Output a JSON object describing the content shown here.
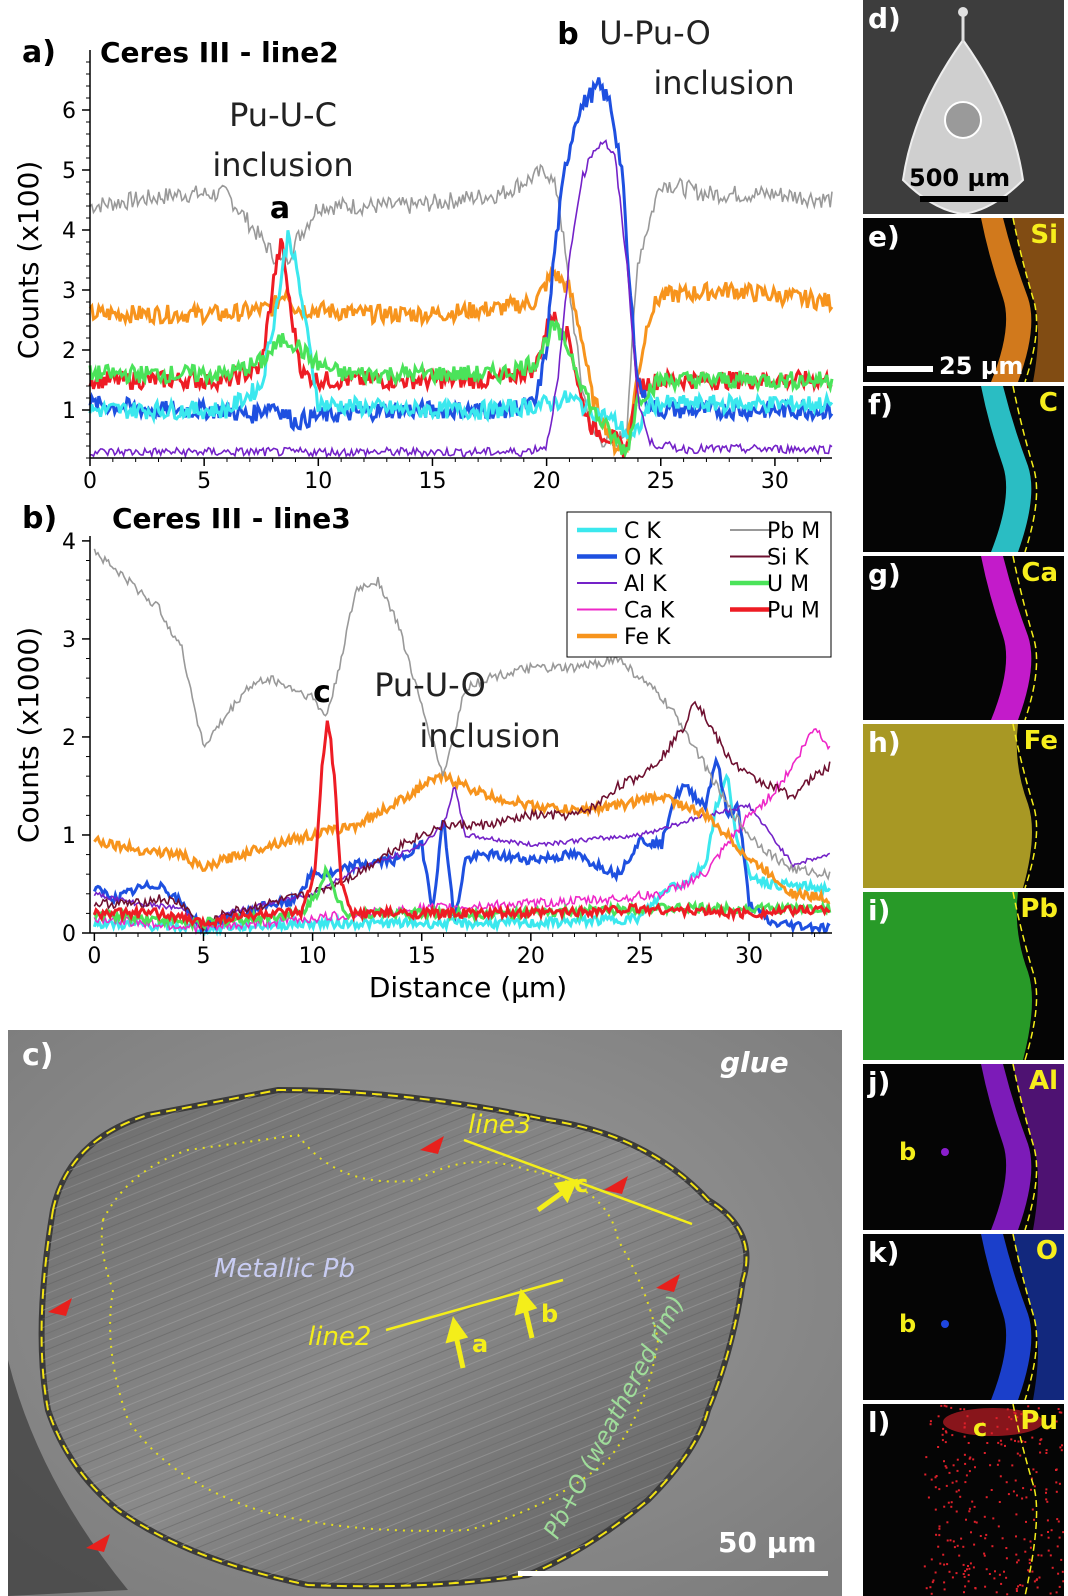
{
  "chart_data": [
    {
      "type": "line",
      "panel_label": "a)",
      "title": "Ceres III - line2",
      "ylabel": "Counts (x100)",
      "xlim": [
        0,
        32.5
      ],
      "ylim": [
        0.2,
        7
      ],
      "x_ticks": [
        0,
        5,
        10,
        15,
        20,
        25,
        30
      ],
      "y_ticks": [
        1,
        2,
        3,
        4,
        5,
        6
      ],
      "annotations": [
        {
          "label": "a",
          "text": "Pu-U-C",
          "text2": "inclusion"
        },
        {
          "label": "b",
          "text": "U-Pu-O",
          "text2": "inclusion"
        }
      ],
      "series": [
        {
          "name": "Pb M",
          "color": "#999999",
          "x": [
            0,
            2,
            4,
            6,
            7,
            8,
            8.5,
            9,
            10,
            12,
            14,
            16,
            18,
            19,
            20,
            20.5,
            21,
            21.5,
            22,
            23,
            23.5,
            24,
            25,
            27,
            30,
            32.5
          ],
          "values": [
            4.4,
            4.5,
            4.6,
            4.6,
            4.1,
            3.6,
            3.4,
            3.8,
            4.4,
            4.4,
            4.4,
            4.5,
            4.6,
            4.8,
            5.0,
            4.6,
            3.0,
            1.5,
            0.6,
            0.4,
            0.7,
            3.5,
            4.8,
            4.6,
            4.6,
            4.5
          ]
        },
        {
          "name": "Fe K",
          "color": "#f7941d",
          "x": [
            0,
            3,
            6,
            8,
            8.6,
            9,
            12,
            15,
            18,
            19.5,
            20.3,
            21,
            21.5,
            22,
            23,
            23.5,
            24,
            24.5,
            25,
            28,
            32.5
          ],
          "values": [
            2.6,
            2.6,
            2.6,
            2.7,
            3.0,
            2.7,
            2.6,
            2.6,
            2.7,
            2.8,
            3.3,
            3.0,
            2.3,
            1.2,
            0.4,
            0.4,
            1.6,
            2.6,
            2.9,
            3.0,
            2.8
          ]
        },
        {
          "name": "Pu M",
          "color": "#ee1c24",
          "x": [
            0,
            3,
            6,
            7.5,
            8.1,
            8.4,
            8.8,
            9.3,
            10,
            14,
            18,
            19.5,
            20.2,
            21,
            21.5,
            22,
            23,
            23.5,
            24,
            25,
            28,
            32.5
          ],
          "values": [
            1.5,
            1.5,
            1.5,
            1.7,
            3.3,
            3.8,
            2.6,
            1.6,
            1.5,
            1.5,
            1.5,
            1.7,
            2.6,
            2.2,
            1.2,
            0.7,
            0.5,
            0.3,
            1.4,
            1.5,
            1.5,
            1.5
          ]
        },
        {
          "name": "O K",
          "color": "#1e50e0",
          "x": [
            0,
            3,
            6,
            7,
            8,
            9,
            10,
            13,
            16,
            18,
            19.5,
            20,
            20.3,
            20.8,
            21.3,
            21.8,
            22.3,
            22.8,
            23.3,
            23.6,
            24,
            24.4,
            25,
            28,
            32.5
          ],
          "values": [
            1.1,
            1.0,
            1.0,
            0.9,
            1.1,
            0.8,
            0.9,
            1.0,
            1.0,
            1.0,
            1.1,
            2.0,
            3.5,
            5.0,
            5.9,
            6.2,
            6.4,
            6.1,
            5.0,
            3.2,
            1.5,
            1.1,
            1.0,
            1.0,
            1.0
          ]
        },
        {
          "name": "C K",
          "color": "#3be8ee",
          "x": [
            0,
            3,
            6,
            7.5,
            8.3,
            8.7,
            9.2,
            10,
            14,
            18,
            20,
            21,
            22,
            23,
            23.8,
            24.5,
            26,
            30,
            32.5
          ],
          "values": [
            1.0,
            1.0,
            1.0,
            1.4,
            3.0,
            4.0,
            3.0,
            1.1,
            1.0,
            1.0,
            1.1,
            1.2,
            1.0,
            0.8,
            0.5,
            1.1,
            1.1,
            1.1,
            1.1
          ]
        },
        {
          "name": "U M",
          "color": "#4be35a",
          "x": [
            0,
            3,
            6,
            7.5,
            8.5,
            9,
            9.8,
            11,
            14,
            18,
            19.5,
            20.3,
            21,
            21.5,
            22,
            23,
            23.5,
            24,
            25,
            28,
            32.5
          ],
          "values": [
            1.6,
            1.6,
            1.6,
            1.8,
            2.2,
            2.1,
            1.8,
            1.6,
            1.6,
            1.6,
            1.8,
            2.4,
            2.0,
            1.5,
            1.0,
            0.5,
            0.3,
            1.2,
            1.5,
            1.5,
            1.5
          ]
        },
        {
          "name": "Al K",
          "color": "#7422c8",
          "x": [
            0,
            5,
            10,
            15,
            19,
            20,
            20.5,
            21,
            21.5,
            22,
            22.5,
            23,
            23.5,
            24,
            24.5,
            26,
            30,
            32.5
          ],
          "values": [
            0.3,
            0.3,
            0.3,
            0.3,
            0.3,
            0.4,
            1.5,
            3.5,
            4.8,
            5.3,
            5.5,
            5.2,
            3.5,
            1.2,
            0.45,
            0.35,
            0.35,
            0.35
          ]
        }
      ]
    },
    {
      "type": "line",
      "panel_label": "b)",
      "title": "Ceres III - line3",
      "ylabel": "Counts (x1000)",
      "xlabel": "Distance (µm)",
      "xlim": [
        -0.2,
        33.8
      ],
      "ylim": [
        0,
        4.05
      ],
      "x_ticks": [
        0,
        5,
        10,
        15,
        20,
        25,
        30
      ],
      "y_ticks": [
        0,
        1,
        2,
        3,
        4
      ],
      "annotations": [
        {
          "label": "c",
          "text": "Pu-U-O",
          "text2": "inclusion"
        }
      ],
      "series": [
        {
          "name": "C K",
          "color": "#3be8ee",
          "x": [
            0,
            5,
            10,
            15,
            20,
            25,
            26,
            26.5,
            27,
            28,
            28.5,
            29,
            29.5,
            30,
            31,
            33.7
          ],
          "values": [
            0.1,
            0.05,
            0.1,
            0.1,
            0.1,
            0.15,
            0.4,
            0.5,
            0.5,
            0.7,
            1.3,
            1.6,
            0.9,
            0.6,
            0.5,
            0.45
          ]
        },
        {
          "name": "O K",
          "color": "#1e50e0",
          "x": [
            0,
            1,
            2,
            3,
            4,
            5,
            6,
            7,
            8,
            9,
            10,
            11,
            12,
            14,
            15,
            15.5,
            16,
            16.5,
            17,
            18,
            20,
            22,
            24,
            25,
            26,
            26.5,
            27,
            28,
            28.5,
            29,
            29.5,
            30,
            31,
            33.7
          ],
          "values": [
            0.45,
            0.35,
            0.45,
            0.5,
            0.3,
            0.05,
            0.15,
            0.2,
            0.3,
            0.3,
            0.6,
            0.6,
            0.7,
            0.75,
            0.9,
            0.25,
            1.2,
            0.1,
            0.75,
            0.8,
            0.75,
            0.8,
            0.6,
            0.95,
            0.9,
            1.35,
            1.5,
            1.3,
            1.8,
            1.2,
            1.3,
            0.3,
            0.1,
            0.05
          ]
        },
        {
          "name": "Al K",
          "color": "#7422c8",
          "x": [
            0,
            2,
            4,
            5,
            6,
            8,
            10,
            12,
            14,
            15,
            16,
            16.5,
            17,
            20,
            25,
            28,
            30,
            32,
            33.7
          ],
          "values": [
            0.4,
            0.3,
            0.25,
            0.05,
            0.2,
            0.3,
            0.4,
            0.65,
            0.8,
            0.9,
            1.1,
            1.5,
            1.0,
            0.9,
            1.0,
            1.2,
            1.3,
            0.7,
            0.8
          ]
        },
        {
          "name": "Ca K",
          "color": "#ee28c8",
          "x": [
            0,
            5,
            10,
            15,
            20,
            24,
            26,
            28,
            30,
            31,
            32,
            33,
            33.7
          ],
          "values": [
            0.15,
            0.05,
            0.15,
            0.25,
            0.3,
            0.35,
            0.4,
            0.6,
            1.2,
            1.4,
            1.7,
            2.1,
            1.9
          ]
        },
        {
          "name": "Fe K",
          "color": "#f7941d",
          "x": [
            0,
            2,
            4,
            5,
            6,
            8,
            10,
            12,
            14,
            15,
            16,
            18,
            20,
            22,
            24,
            26,
            28,
            29,
            30,
            31,
            32,
            33.7
          ],
          "values": [
            0.95,
            0.85,
            0.8,
            0.65,
            0.75,
            0.9,
            1.0,
            1.1,
            1.35,
            1.5,
            1.6,
            1.4,
            1.3,
            1.25,
            1.3,
            1.4,
            1.2,
            1.0,
            0.75,
            0.6,
            0.4,
            0.35
          ]
        },
        {
          "name": "Pb M",
          "color": "#999999",
          "x": [
            0,
            1,
            2,
            3,
            4,
            5,
            6,
            7,
            8,
            9,
            10,
            10.6,
            11,
            12,
            13,
            14,
            15,
            16,
            17,
            18,
            20,
            22,
            24,
            25,
            26,
            27,
            28,
            29,
            30,
            31,
            32,
            33.7
          ],
          "values": [
            3.9,
            3.7,
            3.5,
            3.3,
            2.9,
            1.9,
            2.2,
            2.5,
            2.6,
            2.5,
            2.4,
            2.2,
            2.5,
            3.5,
            3.6,
            3.1,
            2.3,
            1.6,
            2.5,
            2.6,
            2.7,
            2.7,
            2.8,
            2.6,
            2.4,
            2.1,
            1.7,
            1.3,
            1.0,
            0.8,
            0.65,
            0.6
          ]
        },
        {
          "name": "Si K",
          "color": "#6e1030",
          "x": [
            0,
            2,
            3,
            4,
            5,
            6,
            8,
            10,
            12,
            14,
            15,
            16,
            18,
            20,
            22,
            23,
            24,
            25,
            26,
            27,
            27.5,
            28,
            29,
            30,
            31,
            32,
            33,
            33.7
          ],
          "values": [
            0.3,
            0.3,
            0.35,
            0.3,
            0.05,
            0.2,
            0.3,
            0.4,
            0.6,
            0.9,
            1.0,
            1.1,
            1.1,
            1.2,
            1.2,
            1.3,
            1.5,
            1.6,
            1.8,
            2.1,
            2.4,
            2.2,
            1.8,
            1.6,
            1.5,
            1.4,
            1.6,
            1.7
          ]
        },
        {
          "name": "U M",
          "color": "#4be35a",
          "x": [
            0,
            5,
            9.5,
            10.2,
            10.6,
            11,
            11.6,
            15,
            20,
            25,
            30,
            33.7
          ],
          "values": [
            0.2,
            0.1,
            0.2,
            0.4,
            0.65,
            0.4,
            0.2,
            0.2,
            0.2,
            0.25,
            0.25,
            0.25
          ]
        },
        {
          "name": "Pu M",
          "color": "#ee1c24",
          "x": [
            0,
            3,
            5,
            6,
            8,
            9.5,
            10.1,
            10.4,
            10.7,
            11,
            11.3,
            11.8,
            13,
            20,
            25,
            30,
            33.7
          ],
          "values": [
            0.2,
            0.2,
            0.1,
            0.15,
            0.2,
            0.2,
            0.6,
            1.6,
            2.2,
            1.6,
            0.5,
            0.2,
            0.2,
            0.2,
            0.25,
            0.2,
            0.25
          ]
        }
      ]
    }
  ],
  "legend": {
    "col1": [
      {
        "name": "C K",
        "color": "#3be8ee"
      },
      {
        "name": "O K",
        "color": "#1e50e0"
      },
      {
        "name": "Al K",
        "color": "#7422c8"
      },
      {
        "name": "Ca K",
        "color": "#ee28c8"
      },
      {
        "name": "Fe K",
        "color": "#f7941d"
      }
    ],
    "col2": [
      {
        "name": "Pb M",
        "color": "#999999"
      },
      {
        "name": "Si K",
        "color": "#6e1030"
      },
      {
        "name": "U M",
        "color": "#4be35a"
      },
      {
        "name": "Pu M",
        "color": "#ee1c24"
      }
    ]
  },
  "sem": {
    "panel_label": "c)",
    "glue": "glue",
    "metallic": "Metallic Pb",
    "rim": "Pb+O (weathered rim)",
    "line2": "line2",
    "line3": "line3",
    "arrow_a": "a",
    "arrow_b": "b",
    "arrow_c": "c",
    "scale": "50 µm"
  },
  "maps": [
    {
      "label": "d)",
      "element": "",
      "scale": "500 µm",
      "kind": "sem",
      "color": "#cfcfcf"
    },
    {
      "label": "e)",
      "element": "Si",
      "scale": "25 µm",
      "kind": "map",
      "color": "#e8861f"
    },
    {
      "label": "f)",
      "element": "C",
      "scale": "",
      "kind": "map",
      "color": "#2fd2d8"
    },
    {
      "label": "g)",
      "element": "Ca",
      "scale": "",
      "kind": "map",
      "color": "#d81ee0"
    },
    {
      "label": "h)",
      "element": "Fe",
      "scale": "",
      "kind": "map",
      "color": "#c6b32a"
    },
    {
      "label": "i)",
      "element": "Pb",
      "scale": "",
      "kind": "map",
      "color": "#2fb52f"
    },
    {
      "label": "j)",
      "element": "Al",
      "scale": "",
      "kind": "map",
      "color": "#8a1ecc",
      "spot": "b"
    },
    {
      "label": "k)",
      "element": "O",
      "scale": "",
      "kind": "map",
      "color": "#1e46e0",
      "spot": "b"
    },
    {
      "label": "l)",
      "element": "Pu",
      "scale": "",
      "kind": "map",
      "color": "#e0202a",
      "spot": "c"
    }
  ]
}
